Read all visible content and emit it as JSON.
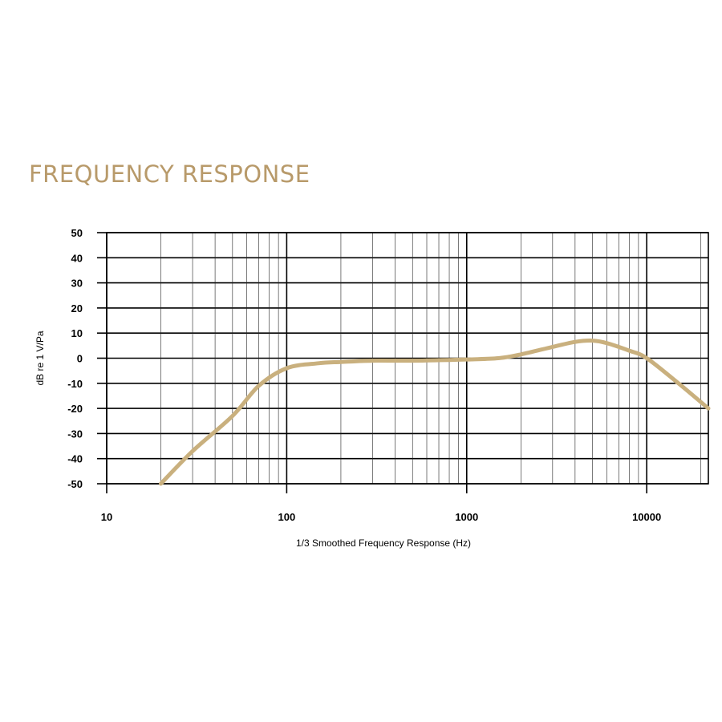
{
  "chart_data": {
    "type": "line",
    "title": "FREQUENCY RESPONSE",
    "xlabel": "1/3 Smoothed Frequency Response (Hz)",
    "ylabel": "dB re 1 V/Pa",
    "x_scale": "log",
    "xlim": [
      10,
      22000
    ],
    "ylim": [
      -50,
      50
    ],
    "x_ticks": [
      10,
      100,
      1000,
      10000
    ],
    "x_tick_labels": [
      "10",
      "100",
      "1000",
      "10000"
    ],
    "y_ticks": [
      50,
      40,
      30,
      20,
      10,
      0,
      -10,
      -20,
      -30,
      -40,
      -50
    ],
    "y_tick_labels": [
      "50",
      "40",
      "30",
      "20",
      "10",
      "0",
      "-10",
      "-20",
      "-30",
      "-40",
      "-50"
    ],
    "grid": true,
    "series": [
      {
        "x": [
          20,
          30,
          50,
          70,
          100,
          150,
          200,
          300,
          500,
          1000,
          1500,
          2000,
          3000,
          4000,
          5000,
          6000,
          8000,
          10000,
          15000,
          22000
        ],
        "y": [
          -50,
          -37,
          -23,
          -11,
          -4,
          -2,
          -1.5,
          -1,
          -1,
          -0.5,
          0,
          1.5,
          4.5,
          6.5,
          7,
          6,
          3,
          0,
          -10,
          -20
        ]
      }
    ],
    "colors": {
      "title": "#b89a6a",
      "curve": "#c9b07e"
    }
  }
}
